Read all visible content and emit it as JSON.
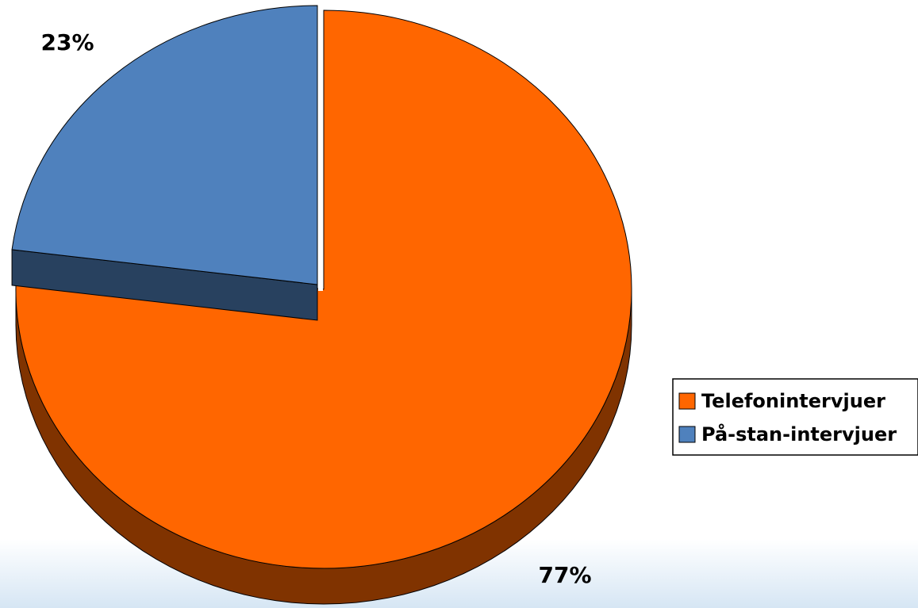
{
  "chart_data": {
    "type": "pie",
    "categories": [
      "Telefonintervjuer",
      "På-stan-intervjuer"
    ],
    "values": [
      77,
      23
    ],
    "value_labels": [
      "77%",
      "23%"
    ],
    "colors": [
      "#ff6600",
      "#4f81bd"
    ]
  }
}
